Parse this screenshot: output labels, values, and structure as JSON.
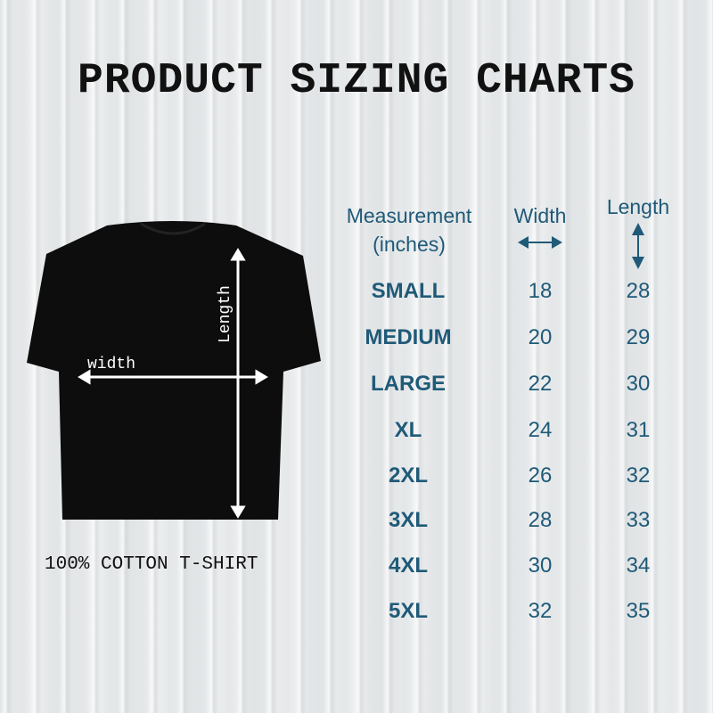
{
  "title": "PRODUCT SIZING CHARTS",
  "caption": "100% COTTON T-SHIRT",
  "diagram": {
    "width_label": "width",
    "length_label": "Length"
  },
  "table": {
    "headers": {
      "measurement": "Measurement",
      "unit": "(inches)",
      "width": "Width",
      "length": "Length"
    },
    "rows": [
      {
        "size": "SMALL",
        "width": "18",
        "length": "28"
      },
      {
        "size": "MEDIUM",
        "width": "20",
        "length": "29"
      },
      {
        "size": "LARGE",
        "width": "22",
        "length": "30"
      },
      {
        "size": "XL",
        "width": "24",
        "length": "31"
      },
      {
        "size": "2XL",
        "width": "26",
        "length": "32"
      },
      {
        "size": "3XL",
        "width": "28",
        "length": "33"
      },
      {
        "size": "4XL",
        "width": "30",
        "length": "34"
      },
      {
        "size": "5XL",
        "width": "32",
        "length": "35"
      }
    ]
  },
  "colors": {
    "accent": "#1f5a78",
    "shirt": "#0d0d0d"
  }
}
